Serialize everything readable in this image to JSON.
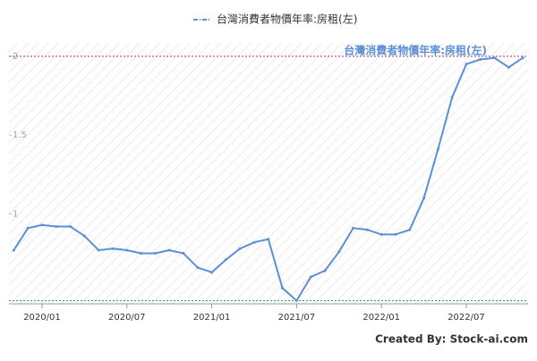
{
  "chart_data": {
    "type": "line",
    "categories": [
      null,
      null,
      "2020/01",
      null,
      null,
      null,
      null,
      null,
      "2020/07",
      null,
      null,
      null,
      null,
      null,
      "2021/01",
      null,
      null,
      null,
      null,
      null,
      "2021/07",
      null,
      null,
      null,
      null,
      null,
      "2022/01",
      null,
      null,
      null,
      null,
      null,
      "2022/07",
      null,
      null,
      null,
      null
    ],
    "series": [
      {
        "name": "台灣消費者物價年率:房租(左)",
        "color": "#5b8fd6",
        "values": [
          0.77,
          0.91,
          0.93,
          0.92,
          0.92,
          0.86,
          0.77,
          0.78,
          0.77,
          0.75,
          0.75,
          0.77,
          0.75,
          0.66,
          0.63,
          0.71,
          0.78,
          0.82,
          0.84,
          0.53,
          0.45,
          0.6,
          0.64,
          0.76,
          0.91,
          0.9,
          0.87,
          0.87,
          0.9,
          1.1,
          1.41,
          1.74,
          1.95,
          1.98,
          1.99,
          1.93,
          1.99
        ]
      }
    ],
    "ylim": [
      0.43,
      2.085
    ],
    "yticks": [
      1,
      1.5,
      2
    ],
    "reference_lines": [
      {
        "value": 2,
        "color": "#a0306a"
      },
      {
        "value": 0.45,
        "color": "#2aa05a"
      }
    ],
    "credit": "Created By: Stock-ai.com"
  }
}
